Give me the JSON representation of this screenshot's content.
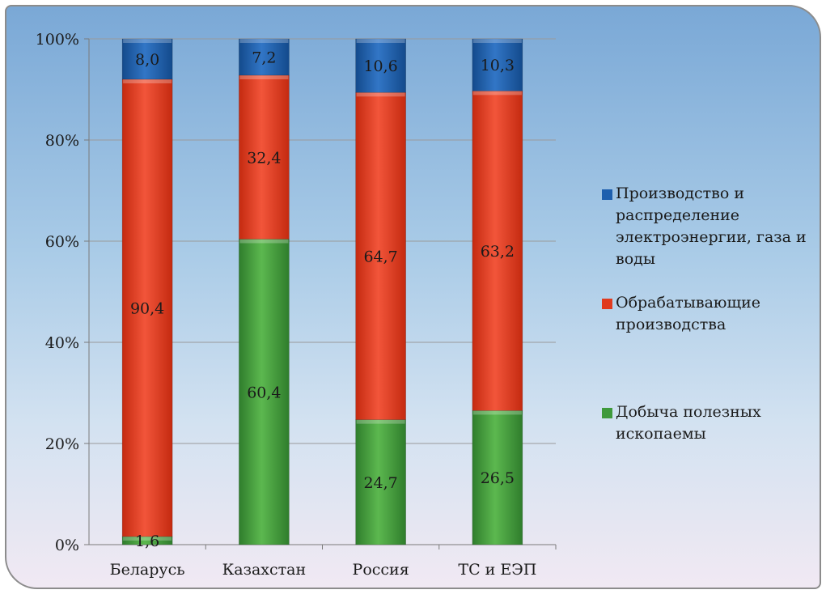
{
  "chart_data": {
    "type": "bar",
    "stacked": true,
    "percent": true,
    "categories": [
      "Беларусь",
      "Казахстан",
      "Россия",
      "ТС и ЕЭП"
    ],
    "series": [
      {
        "name": "Добыча полезных ископаемы",
        "color": "#3f9a3c",
        "values": [
          1.6,
          60.4,
          24.7,
          26.5
        ],
        "labels": [
          "1,6",
          "60,4",
          "24,7",
          "26,5"
        ]
      },
      {
        "name": "Обрабатывающие производства",
        "color": "#e03a1e",
        "values": [
          90.4,
          32.4,
          64.7,
          63.2
        ],
        "labels": [
          "90,4",
          "32,4",
          "64,7",
          "63,2"
        ]
      },
      {
        "name": "Производство и распределение электроэнергии, газа и воды",
        "color": "#1d5fae",
        "values": [
          8.0,
          7.2,
          10.6,
          10.3
        ],
        "labels": [
          "8,0",
          "7,2",
          "10,6",
          "10,3"
        ]
      }
    ],
    "yticks": [
      "0%",
      "20%",
      "40%",
      "60%",
      "80%",
      "100%"
    ],
    "ylim": [
      0,
      100
    ],
    "grid": true,
    "legend": "right",
    "title": "",
    "xlabel": "",
    "ylabel": ""
  }
}
